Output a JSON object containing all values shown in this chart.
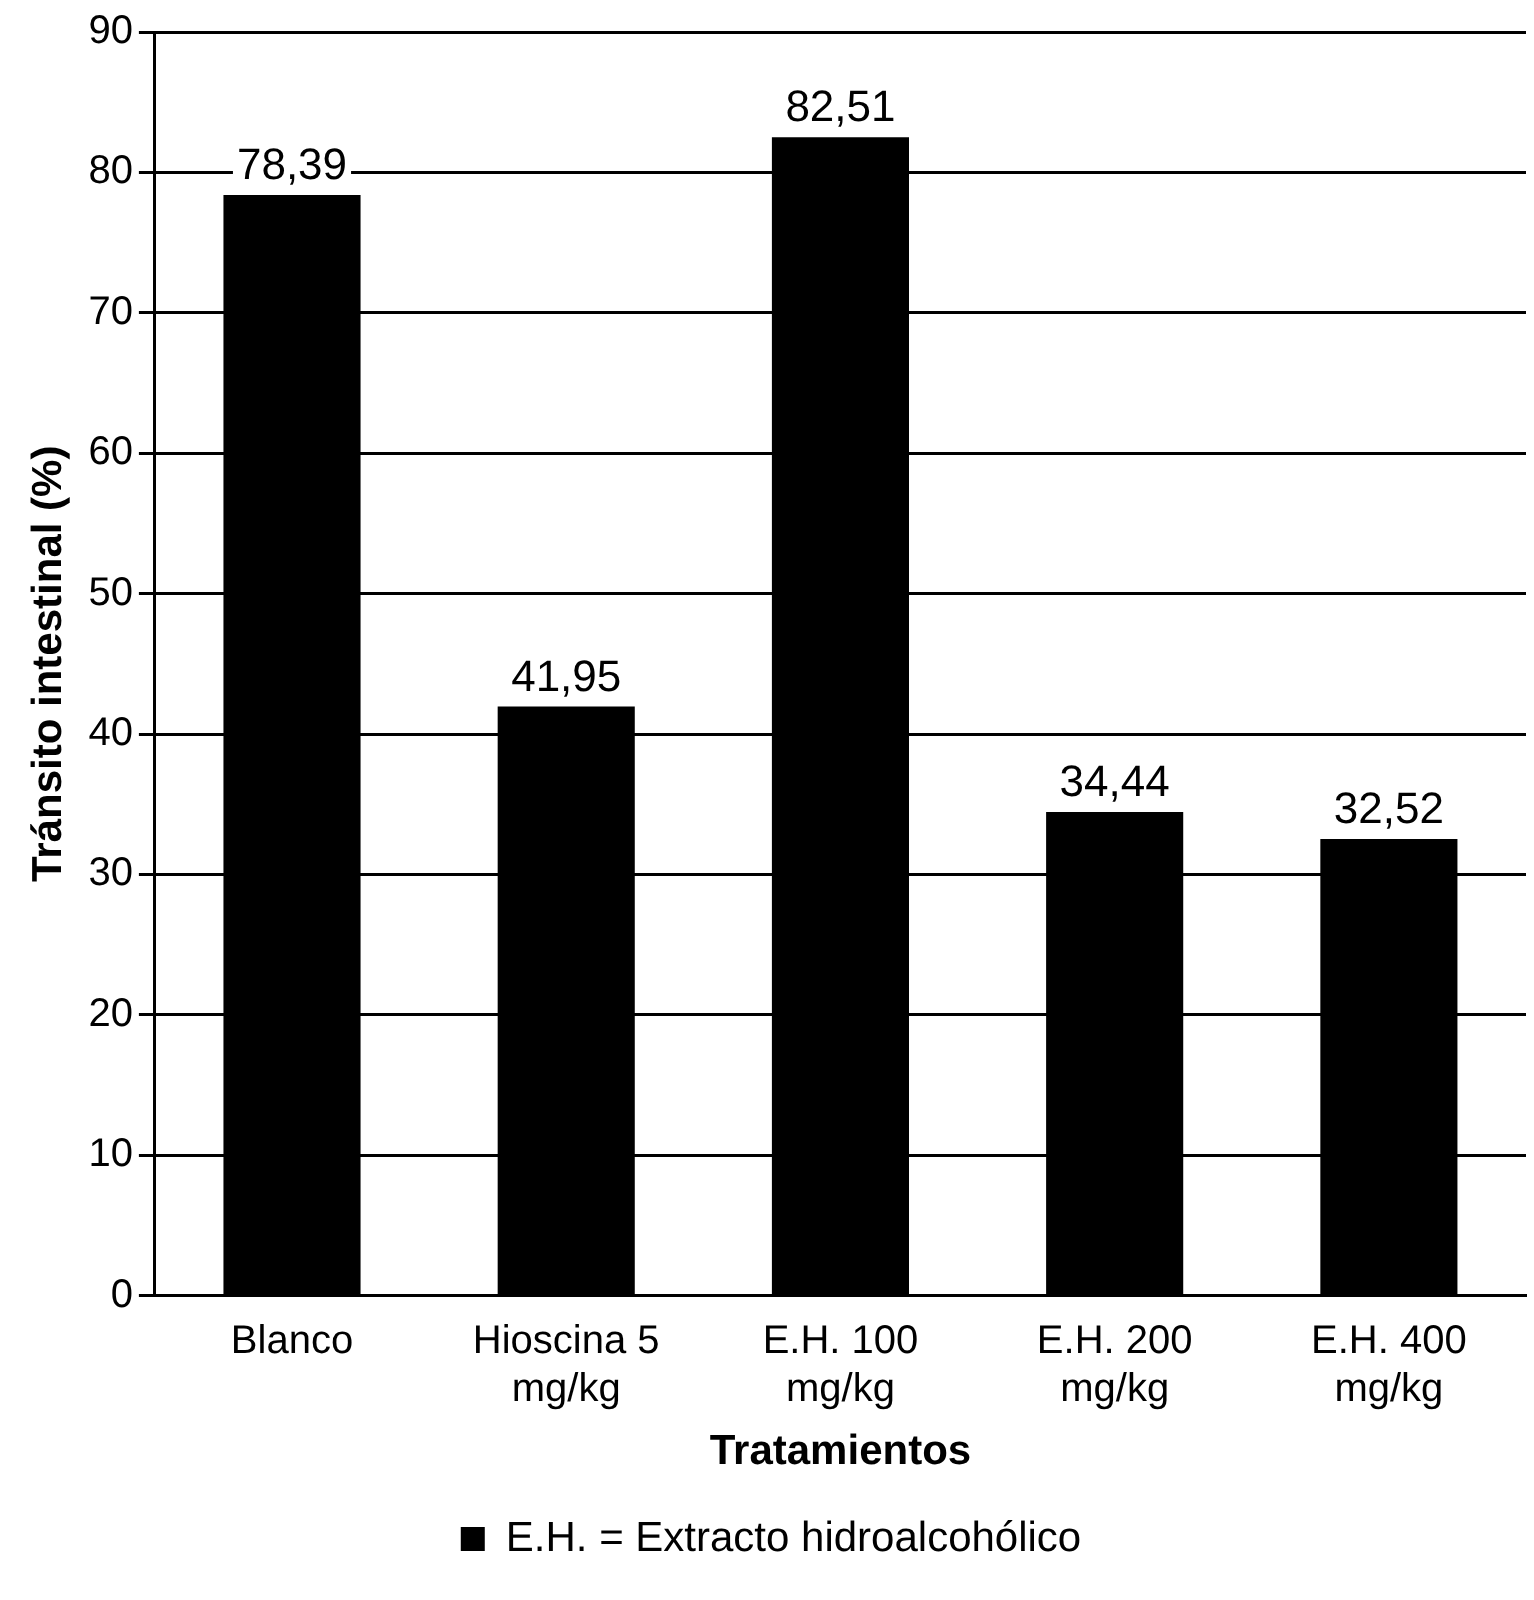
{
  "chart_data": {
    "type": "bar",
    "xlabel": "Tratamientos",
    "ylabel": "Tránsito intestinal (%)",
    "categories": [
      "Blanco",
      "Hioscina 5 mg/kg",
      "E.H. 100 mg/kg",
      "E.H. 200 mg/kg",
      "E.H. 400 mg/kg"
    ],
    "series": [
      {
        "name": "E.H. = Extracto hidroalcohólico",
        "color": "#000000",
        "values": [
          78.39,
          41.95,
          82.51,
          34.44,
          32.52
        ],
        "value_labels": [
          "78,39",
          "41,95",
          "82,51",
          "34,44",
          "32,52"
        ]
      }
    ],
    "ylim": [
      0,
      90
    ],
    "yticks": [
      0,
      10,
      20,
      30,
      40,
      50,
      60,
      70,
      80,
      90
    ],
    "grid": "y",
    "legend": "bottom"
  }
}
